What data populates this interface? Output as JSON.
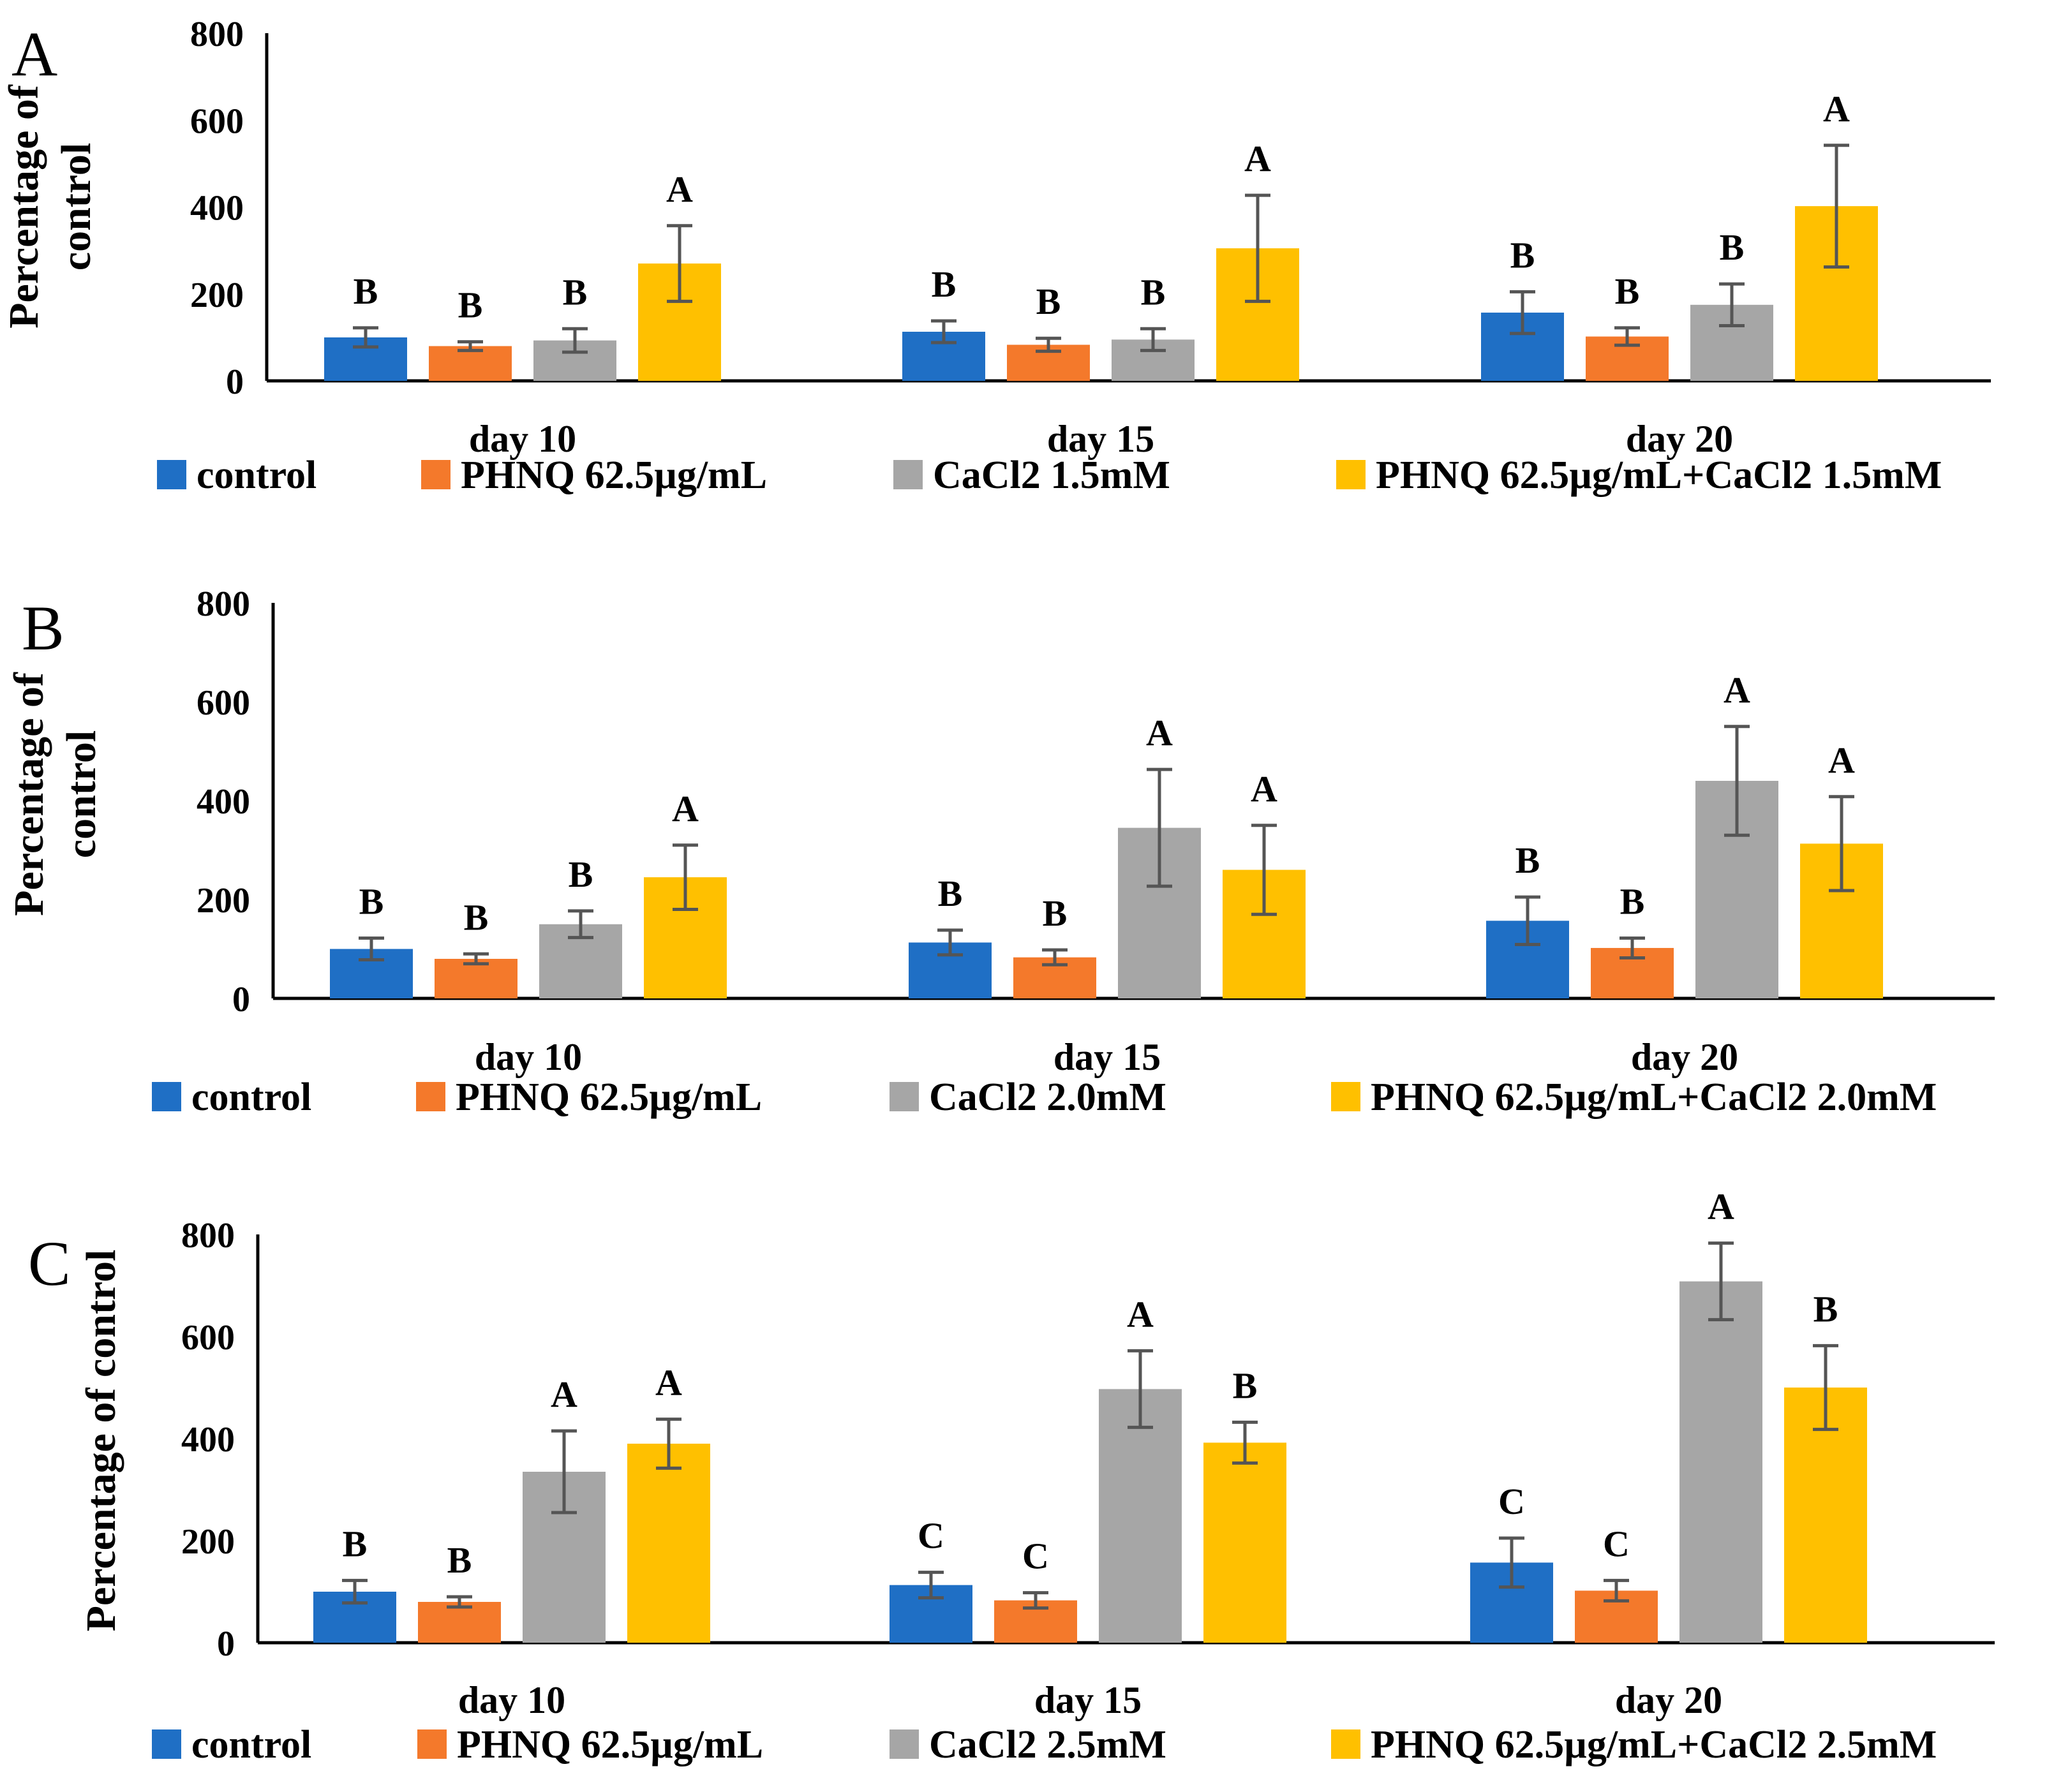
{
  "chart_data": [
    {
      "panel": "A",
      "type": "bar",
      "ylabel": "Percentage of control",
      "ylabel_lines": [
        "Percentage of",
        "control"
      ],
      "ylim": [
        0,
        800
      ],
      "yticks": [
        "0",
        "200",
        "400",
        "600",
        "800"
      ],
      "categories": [
        "day 10",
        "day 15",
        "day 20"
      ],
      "series": [
        {
          "name": "control",
          "color": "#1F6FC5",
          "values": [
            100,
            113,
            157
          ],
          "errors": [
            22,
            25,
            48
          ],
          "letters": [
            "B",
            "B",
            "B"
          ]
        },
        {
          "name": "PHNQ 62.5µg/mL",
          "color": "#F4792B",
          "values": [
            80,
            83,
            102
          ],
          "errors": [
            10,
            15,
            20
          ],
          "letters": [
            "B",
            "B",
            "B"
          ]
        },
        {
          "name": "CaCl2 1.5mM",
          "color": "#A6A6A6",
          "values": [
            93,
            95,
            175
          ],
          "errors": [
            27,
            25,
            48
          ],
          "letters": [
            "B",
            "B",
            "B"
          ]
        },
        {
          "name": "PHNQ 62.5µg/mL+CaCl2 1.5mM",
          "color": "#FFC000",
          "values": [
            270,
            305,
            402
          ],
          "errors": [
            87,
            122,
            140
          ],
          "letters": [
            "A",
            "A",
            "A"
          ]
        }
      ]
    },
    {
      "panel": "B",
      "type": "bar",
      "ylabel": "Percentage of control",
      "ylabel_lines": [
        "Percentage of",
        "control"
      ],
      "ylim": [
        0,
        800
      ],
      "yticks": [
        "0",
        "200",
        "400",
        "600",
        "800"
      ],
      "categories": [
        "day 10",
        "day 15",
        "day 20"
      ],
      "series": [
        {
          "name": "control",
          "color": "#1F6FC5",
          "values": [
            100,
            113,
            157
          ],
          "errors": [
            22,
            25,
            48
          ],
          "letters": [
            "B",
            "B",
            "B"
          ]
        },
        {
          "name": "PHNQ 62.5µg/mL",
          "color": "#F4792B",
          "values": [
            80,
            83,
            102
          ],
          "errors": [
            10,
            15,
            20
          ],
          "letters": [
            "B",
            "B",
            "B"
          ]
        },
        {
          "name": "CaCl2 2.0mM",
          "color": "#A6A6A6",
          "values": [
            150,
            345,
            440
          ],
          "errors": [
            27,
            118,
            110
          ],
          "letters": [
            "B",
            "A",
            "A"
          ]
        },
        {
          "name": "PHNQ 62.5µg/mL+CaCl2 2.0mM",
          "color": "#FFC000",
          "values": [
            245,
            260,
            313
          ],
          "errors": [
            65,
            90,
            95
          ],
          "letters": [
            "A",
            "A",
            "A"
          ]
        }
      ]
    },
    {
      "panel": "C",
      "type": "bar",
      "ylabel": "Percentage of control",
      "ylabel_lines": [
        "Percentage of control"
      ],
      "ylim": [
        0,
        800
      ],
      "yticks": [
        "0",
        "200",
        "400",
        "600",
        "800"
      ],
      "categories": [
        "day 10",
        "day 15",
        "day 20"
      ],
      "series": [
        {
          "name": "control",
          "color": "#1F6FC5",
          "values": [
            100,
            113,
            157
          ],
          "errors": [
            22,
            25,
            48
          ],
          "letters": [
            "B",
            "C",
            "C"
          ]
        },
        {
          "name": "PHNQ 62.5µg/mL",
          "color": "#F4792B",
          "values": [
            80,
            83,
            102
          ],
          "errors": [
            10,
            15,
            20
          ],
          "letters": [
            "B",
            "C",
            "C"
          ]
        },
        {
          "name": "CaCl2 2.5mM",
          "color": "#A6A6A6",
          "values": [
            335,
            497,
            708
          ],
          "errors": [
            80,
            75,
            75
          ],
          "letters": [
            "A",
            "A",
            "A"
          ]
        },
        {
          "name": "PHNQ 62.5µg/mL+CaCl2 2.5mM",
          "color": "#FFC000",
          "values": [
            390,
            392,
            500
          ],
          "errors": [
            48,
            40,
            82
          ],
          "letters": [
            "A",
            "B",
            "B"
          ]
        }
      ]
    }
  ]
}
